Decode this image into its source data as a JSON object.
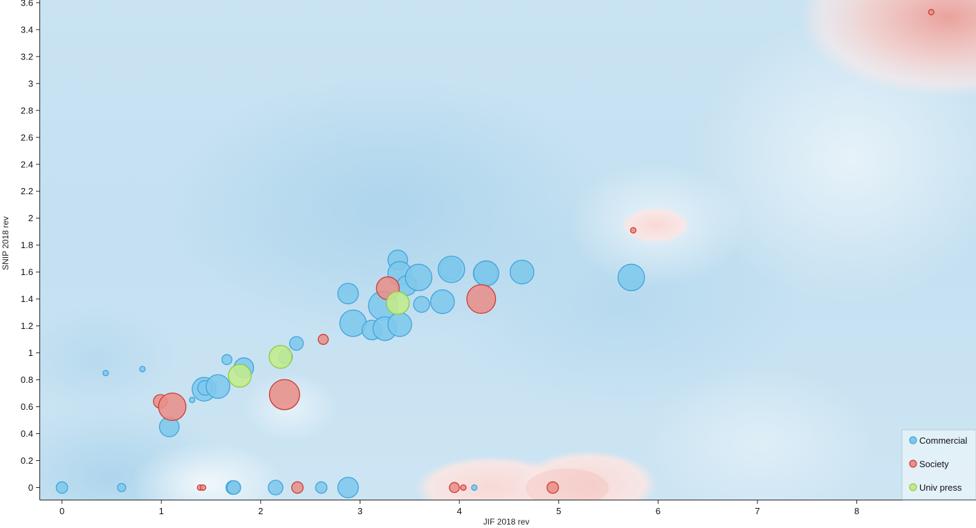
{
  "chart_data": {
    "type": "scatter",
    "xlabel": "JIF 2018 rev",
    "ylabel": "SNIP 2018 rev",
    "xlim": [
      -0.22,
      9.2
    ],
    "ylim": [
      -0.09,
      3.62
    ],
    "x_ticks": [
      0,
      1,
      2,
      3,
      4,
      5,
      6,
      7,
      8
    ],
    "y_ticks": [
      0,
      0.2,
      0.4,
      0.6,
      0.8,
      1,
      1.2,
      1.4,
      1.6,
      1.8,
      2,
      2.2,
      2.4,
      2.6,
      2.8,
      3,
      3.2,
      3.4,
      3.6
    ],
    "grid": false,
    "background": "class-density heatmap (blue = Commercial, red = Society)",
    "legend_position": "bottom-right",
    "series": [
      {
        "name": "Commercial",
        "color": "#7fc8ec",
        "stroke": "#3ea3dc",
        "points": [
          {
            "x": 0.0,
            "y": 0.0,
            "size": 2.5
          },
          {
            "x": 0.6,
            "y": 0.0,
            "size": 1.8
          },
          {
            "x": 0.44,
            "y": 0.85,
            "size": 1.2
          },
          {
            "x": 0.81,
            "y": 0.88,
            "size": 1.2
          },
          {
            "x": 1.08,
            "y": 0.45,
            "size": 4.3
          },
          {
            "x": 1.31,
            "y": 0.65,
            "size": 1.2
          },
          {
            "x": 1.43,
            "y": 0.73,
            "size": 5.2
          },
          {
            "x": 1.44,
            "y": 0.74,
            "size": 3.2
          },
          {
            "x": 1.57,
            "y": 0.75,
            "size": 5.2
          },
          {
            "x": 1.66,
            "y": 0.95,
            "size": 2.2
          },
          {
            "x": 1.72,
            "y": 0.0,
            "size": 3.0
          },
          {
            "x": 1.73,
            "y": 0.0,
            "size": 3.0
          },
          {
            "x": 1.83,
            "y": 0.89,
            "size": 4.3
          },
          {
            "x": 2.15,
            "y": 0.0,
            "size": 3.2
          },
          {
            "x": 2.25,
            "y": 0.97,
            "size": 3.0
          },
          {
            "x": 2.36,
            "y": 1.07,
            "size": 3.0
          },
          {
            "x": 2.61,
            "y": 0.0,
            "size": 2.5
          },
          {
            "x": 2.88,
            "y": 1.44,
            "size": 4.5
          },
          {
            "x": 2.88,
            "y": 0.0,
            "size": 4.5
          },
          {
            "x": 2.93,
            "y": 1.22,
            "size": 5.8
          },
          {
            "x": 3.12,
            "y": 1.17,
            "size": 4.3
          },
          {
            "x": 3.23,
            "y": 1.35,
            "size": 6.3
          },
          {
            "x": 3.25,
            "y": 1.18,
            "size": 5.2
          },
          {
            "x": 3.38,
            "y": 1.69,
            "size": 4.3
          },
          {
            "x": 3.4,
            "y": 1.59,
            "size": 5.2
          },
          {
            "x": 3.4,
            "y": 1.21,
            "size": 5.2
          },
          {
            "x": 3.47,
            "y": 1.5,
            "size": 4.3
          },
          {
            "x": 3.59,
            "y": 1.56,
            "size": 5.8
          },
          {
            "x": 3.62,
            "y": 1.36,
            "size": 3.5
          },
          {
            "x": 3.83,
            "y": 1.38,
            "size": 5.2
          },
          {
            "x": 3.91,
            "y": 1.62,
            "size": 4.5
          },
          {
            "x": 3.92,
            "y": 1.62,
            "size": 5.8
          },
          {
            "x": 4.15,
            "y": 0.0,
            "size": 1.2
          },
          {
            "x": 4.26,
            "y": 1.59,
            "size": 5.2
          },
          {
            "x": 4.27,
            "y": 1.59,
            "size": 5.5
          },
          {
            "x": 4.63,
            "y": 1.6,
            "size": 5.2
          },
          {
            "x": 5.73,
            "y": 1.56,
            "size": 5.8
          }
        ]
      },
      {
        "name": "Society",
        "color": "#e8908a",
        "stroke": "#cc3a31",
        "points": [
          {
            "x": 0.99,
            "y": 0.64,
            "size": 3.0
          },
          {
            "x": 1.11,
            "y": 0.6,
            "size": 6.0
          },
          {
            "x": 1.39,
            "y": 0.0,
            "size": 1.2
          },
          {
            "x": 1.42,
            "y": 0.0,
            "size": 1.2
          },
          {
            "x": 2.24,
            "y": 0.69,
            "size": 6.6
          },
          {
            "x": 2.37,
            "y": 0.0,
            "size": 2.5
          },
          {
            "x": 2.63,
            "y": 1.1,
            "size": 2.2
          },
          {
            "x": 3.28,
            "y": 1.48,
            "size": 5.0
          },
          {
            "x": 3.95,
            "y": 0.0,
            "size": 2.2
          },
          {
            "x": 4.04,
            "y": 0.0,
            "size": 1.2
          },
          {
            "x": 4.22,
            "y": 1.4,
            "size": 6.3
          },
          {
            "x": 4.94,
            "y": 0.0,
            "size": 2.5
          },
          {
            "x": 5.75,
            "y": 1.91,
            "size": 1.2
          },
          {
            "x": 8.75,
            "y": 3.53,
            "size": 1.2
          }
        ]
      },
      {
        "name": "Univ press",
        "color": "#c2ec8c",
        "stroke": "#8ccc3c",
        "points": [
          {
            "x": 1.79,
            "y": 0.83,
            "size": 5.0
          },
          {
            "x": 2.2,
            "y": 0.97,
            "size": 5.0
          },
          {
            "x": 3.38,
            "y": 1.37,
            "size": 5.0
          }
        ]
      }
    ]
  }
}
